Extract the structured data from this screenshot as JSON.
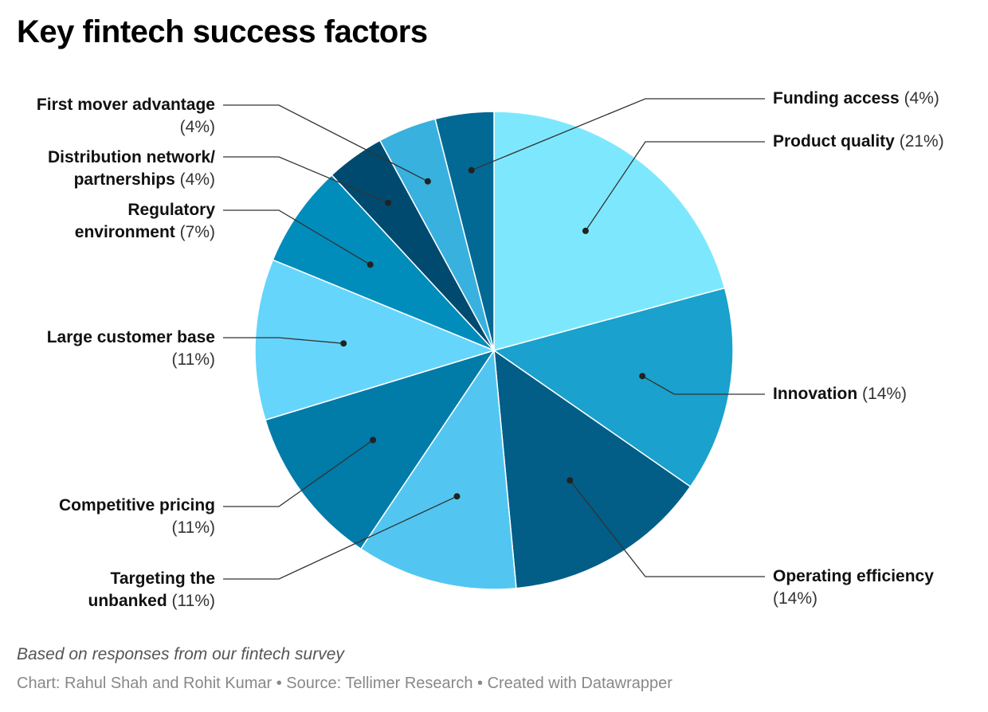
{
  "chart_data": {
    "type": "pie",
    "title": "Key fintech success factors",
    "slices": [
      {
        "name": "Product quality",
        "value": 21,
        "color": "#7de8fd"
      },
      {
        "name": "Innovation",
        "value": 14,
        "color": "#1aa1cd"
      },
      {
        "name": "Operating efficiency",
        "value": 14,
        "color": "#025d87"
      },
      {
        "name": "Targeting the unbanked",
        "value": 11,
        "color": "#52c6f1"
      },
      {
        "name": "Competitive pricing",
        "value": 11,
        "color": "#017ba8"
      },
      {
        "name": "Large customer base",
        "value": 11,
        "color": "#66d5fb"
      },
      {
        "name": "Regulatory environment",
        "value": 7,
        "color": "#008dbc"
      },
      {
        "name": "Distribution network/ partnerships",
        "value": 4,
        "color": "#004a6f"
      },
      {
        "name": "First mover advantage",
        "value": 4,
        "color": "#38b1df"
      },
      {
        "name": "Funding access",
        "value": 4,
        "color": "#026995"
      }
    ],
    "labels": {
      "product_quality": {
        "name": "Product quality",
        "pct": "(21%)"
      },
      "innovation": {
        "name": "Innovation",
        "pct": "(14%)"
      },
      "operating_efficiency": {
        "name": "Operating efficiency",
        "pct": "(14%)"
      },
      "targeting_unbanked": {
        "line1": "Targeting the",
        "line2": "unbanked",
        "pct": "(11%)"
      },
      "competitive_pricing": {
        "name": "Competitive pricing",
        "pct": "(11%)"
      },
      "large_customer_base": {
        "name": "Large customer base",
        "pct": "(11%)"
      },
      "regulatory_environment": {
        "line1": "Regulatory",
        "line2": "environment",
        "pct": "(7%)"
      },
      "distribution_network": {
        "line1": "Distribution network/",
        "line2": "partnerships",
        "pct": "(4%)"
      },
      "first_mover": {
        "name": "First mover advantage",
        "pct": "(4%)"
      },
      "funding_access": {
        "name": "Funding access",
        "pct": "(4%)"
      }
    }
  },
  "footer": {
    "note": "Based on responses from our fintech survey",
    "credit": "Chart: Rahul Shah and Rohit Kumar • Source: Tellimer Research • Created with Datawrapper"
  }
}
